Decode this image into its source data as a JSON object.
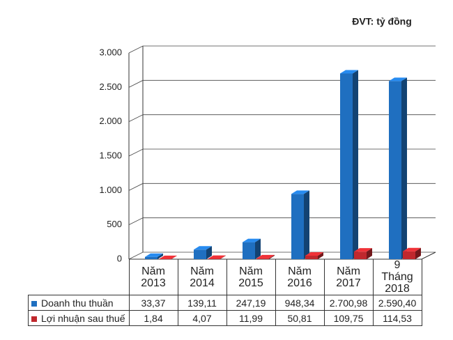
{
  "chart_data": {
    "type": "bar3d",
    "unit_note": "ĐVT: tỷ đồng",
    "categories": [
      "Năm 2013",
      "Năm 2014",
      "Năm 2015",
      "Năm 2016",
      "Năm 2017",
      "9 Tháng 2018"
    ],
    "series": [
      {
        "name": "Doanh thu thuần",
        "color": "#1f6fc0",
        "values": [
          33.37,
          139.11,
          247.19,
          948.34,
          2700.98,
          2590.4
        ],
        "value_labels": [
          "33,37",
          "139,11",
          "247,19",
          "948,34",
          "2.700,98",
          "2.590,40"
        ]
      },
      {
        "name": "Lợi nhuận sau thuế",
        "color": "#c0282d",
        "values": [
          1.84,
          4.07,
          11.99,
          50.81,
          109.75,
          114.53
        ],
        "value_labels": [
          "1,84",
          "4,07",
          "11,99",
          "50,81",
          "109,75",
          "114,53"
        ]
      }
    ],
    "ylim": [
      0,
      3000
    ],
    "yticks": [
      0,
      500,
      {
        "value": 1000,
        "label": "1.000"
      },
      {
        "value": 1500,
        "label": "1.500"
      },
      {
        "value": 2000,
        "label": "2.000"
      },
      {
        "value": 2500,
        "label": "2.500"
      },
      {
        "value": 3000,
        "label": "3.000"
      }
    ],
    "grid": true
  }
}
